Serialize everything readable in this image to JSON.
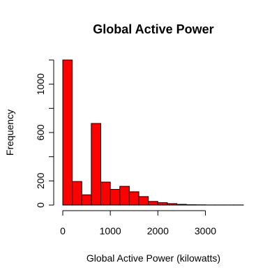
{
  "chart_data": {
    "type": "bar",
    "title": "Global Active Power",
    "xlabel": "Global Active Power (kilowatts)",
    "ylabel": "Frequency",
    "bar_color": "#ff0000",
    "bar_border_color": "#000000",
    "bin_width": 200,
    "bins": [
      {
        "start": 0,
        "end": 200,
        "count": 1200
      },
      {
        "start": 200,
        "end": 400,
        "count": 195
      },
      {
        "start": 400,
        "end": 600,
        "count": 85
      },
      {
        "start": 600,
        "end": 800,
        "count": 675
      },
      {
        "start": 800,
        "end": 1000,
        "count": 190
      },
      {
        "start": 1000,
        "end": 1200,
        "count": 130
      },
      {
        "start": 1200,
        "end": 1400,
        "count": 155
      },
      {
        "start": 1400,
        "end": 1600,
        "count": 110
      },
      {
        "start": 1600,
        "end": 1800,
        "count": 70
      },
      {
        "start": 1800,
        "end": 2000,
        "count": 30
      },
      {
        "start": 2000,
        "end": 2200,
        "count": 20
      },
      {
        "start": 2200,
        "end": 2400,
        "count": 12
      },
      {
        "start": 2400,
        "end": 2600,
        "count": 6
      },
      {
        "start": 2600,
        "end": 2800,
        "count": 3
      },
      {
        "start": 2800,
        "end": 3000,
        "count": 2
      },
      {
        "start": 3000,
        "end": 3200,
        "count": 1
      },
      {
        "start": 3200,
        "end": 3400,
        "count": 1
      },
      {
        "start": 3400,
        "end": 3600,
        "count": 1
      },
      {
        "start": 3600,
        "end": 3800,
        "count": 1
      }
    ],
    "xlim": [
      0,
      3800
    ],
    "ylim": [
      0,
      1200
    ],
    "x_ticks": [
      "0",
      "1000",
      "2000",
      "3000"
    ],
    "x_tick_values": [
      0,
      1000,
      2000,
      3000
    ],
    "y_ticks": [
      "0",
      "200",
      "600",
      "1000"
    ],
    "y_tick_values": [
      0,
      200,
      600,
      1000
    ],
    "y_minor_ticks": [
      400,
      800,
      1200
    ],
    "grid": false,
    "legend": "none"
  }
}
